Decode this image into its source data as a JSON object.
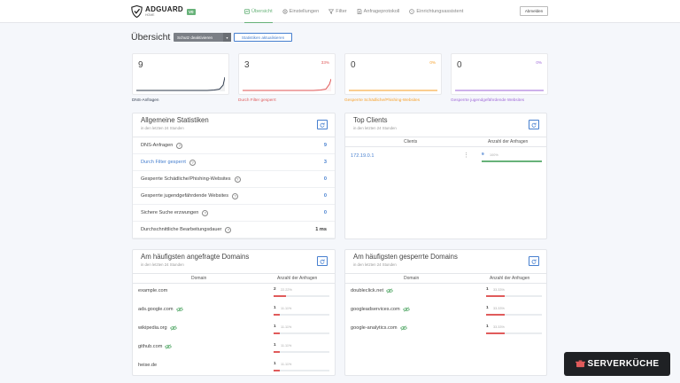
{
  "header": {
    "brand": "ADGUARD",
    "brand_sub": "HOME",
    "badge": "V0",
    "nav": [
      {
        "label": "Übersicht",
        "icon": "dashboard-icon",
        "active": true
      },
      {
        "label": "Einstellungen",
        "icon": "gear-icon",
        "active": false
      },
      {
        "label": "Filter",
        "icon": "filter-icon",
        "active": false
      },
      {
        "label": "Anfrageprotokoll",
        "icon": "document-icon",
        "active": false
      },
      {
        "label": "Einrichtungsassistent",
        "icon": "help-circle-icon",
        "active": false
      }
    ],
    "logout": "Abmelden"
  },
  "toolbar": {
    "title": "Übersicht",
    "protection_button": "Schutz deaktivieren",
    "refresh_button": "Statistiken aktualisieren"
  },
  "stat_cards": [
    {
      "value": "9",
      "percent": "",
      "label": "DNS-Anfragen",
      "color": "#354052"
    },
    {
      "value": "3",
      "percent": "33%",
      "label": "Durch Filter gesperrt",
      "color": "#e05b5b"
    },
    {
      "value": "0",
      "percent": "0%",
      "label": "Gesperrte Schädliche/Phishing-Websites",
      "color": "#f7a12b"
    },
    {
      "value": "0",
      "percent": "0%",
      "label": "Gesperrte jugendgefährdende Websites",
      "color": "#a06ad8"
    }
  ],
  "general_stats": {
    "title": "Allgemeine Statistiken",
    "subtitle": "in den letzten 24 Stunden",
    "rows": [
      {
        "label": "DNS-Anfragen",
        "value": "9",
        "blue_label": false
      },
      {
        "label": "Durch Filter gesperrt",
        "value": "3",
        "blue_label": true
      },
      {
        "label": "Gesperrte Schädliche/Phishing-Websites",
        "value": "0",
        "blue_label": false
      },
      {
        "label": "Gesperrte jugendgefährdende Websites",
        "value": "0",
        "blue_label": false
      },
      {
        "label": "Sichere Suche erzwungen",
        "value": "0",
        "blue_label": false
      },
      {
        "label": "Durchschnittliche Bearbeitungsdauer",
        "value": "1 ms",
        "blue_label": false
      }
    ]
  },
  "top_clients": {
    "title": "Top Clients",
    "subtitle": "in den letzten 24 Stunden",
    "col_client": "Clients",
    "col_requests": "Anzahl der Anfragen",
    "rows": [
      {
        "client": "172.19.0.1",
        "count": "9",
        "percent": "100%",
        "fraction": 1.0
      }
    ]
  },
  "top_queried": {
    "title": "Am häufigsten angefragte Domains",
    "subtitle": "in den letzten 24 Stunden",
    "col_domain": "Domain",
    "col_requests": "Anzahl der Anfragen",
    "rows": [
      {
        "domain": "example.com",
        "count": "2",
        "percent": "22.22%",
        "fraction": 0.2222,
        "eye": false
      },
      {
        "domain": "ads.google.com",
        "count": "1",
        "percent": "11.11%",
        "fraction": 0.1111,
        "eye": true
      },
      {
        "domain": "wikipedia.org",
        "count": "1",
        "percent": "11.11%",
        "fraction": 0.1111,
        "eye": true
      },
      {
        "domain": "github.com",
        "count": "1",
        "percent": "11.11%",
        "fraction": 0.1111,
        "eye": true
      },
      {
        "domain": "heise.de",
        "count": "1",
        "percent": "11.11%",
        "fraction": 0.1111,
        "eye": false
      }
    ]
  },
  "top_blocked": {
    "title": "Am häufigsten gesperrte Domains",
    "subtitle": "in den letzten 24 Stunden",
    "col_domain": "Domain",
    "col_requests": "Anzahl der Anfragen",
    "rows": [
      {
        "domain": "doubleclick.net",
        "count": "1",
        "percent": "33.33%",
        "fraction": 0.3333,
        "eye": true
      },
      {
        "domain": "googleadservices.com",
        "count": "1",
        "percent": "33.33%",
        "fraction": 0.3333,
        "eye": true
      },
      {
        "domain": "google-analytics.com",
        "count": "1",
        "percent": "33.33%",
        "fraction": 0.3333,
        "eye": true
      }
    ]
  },
  "watermark": "SERVERKÜCHE",
  "colors": {
    "accent": "#67b279",
    "link": "#467fcf",
    "red": "#e05b5b",
    "green": "#67b279"
  }
}
